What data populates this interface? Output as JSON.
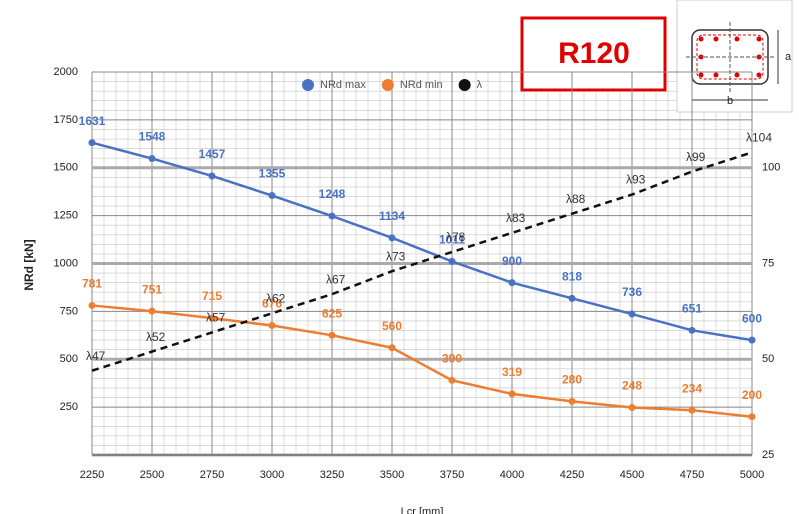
{
  "chart_data": {
    "type": "line",
    "x_label": "Lcr [mm]",
    "y_label": "NRd [kN]",
    "x": [
      2250,
      2500,
      2750,
      3000,
      3250,
      3500,
      3750,
      4000,
      4250,
      4500,
      4750,
      5000
    ],
    "series": [
      {
        "name": "NRd max",
        "color": "#4a72c4",
        "values": [
          1631,
          1548,
          1457,
          1355,
          1248,
          1134,
          1011,
          900,
          818,
          736,
          651,
          600
        ]
      },
      {
        "name": "NRd min",
        "color": "#ed7d31",
        "values": [
          781,
          751,
          715,
          676,
          625,
          560,
          390,
          319,
          280,
          248,
          234,
          200
        ]
      },
      {
        "name": "λ",
        "color": "#111111",
        "axis": "y2",
        "dashed": true,
        "values": [
          47,
          52,
          57,
          62,
          67,
          73,
          78,
          83,
          88,
          93,
          99,
          104
        ],
        "value_labels": [
          "λ47",
          "λ52",
          "λ57",
          "λ62",
          "λ67",
          "λ73",
          "λ78",
          "λ83",
          "λ88",
          "λ93",
          "λ99",
          "λ104"
        ]
      }
    ],
    "xlim": [
      2250,
      5000
    ],
    "xticks": [
      2250,
      2500,
      2750,
      3000,
      3250,
      3500,
      3750,
      4000,
      4250,
      4500,
      4750,
      5000
    ],
    "ylim": [
      0,
      2000
    ],
    "yticks": [
      250,
      500,
      750,
      1000,
      1250,
      1500,
      1750,
      2000
    ],
    "y2lim": [
      25,
      125
    ],
    "y2ticks": [
      25,
      50,
      75,
      100
    ],
    "grid": true,
    "legend": "top"
  },
  "badge": "R120",
  "section": {
    "a": "a",
    "b": "b"
  }
}
